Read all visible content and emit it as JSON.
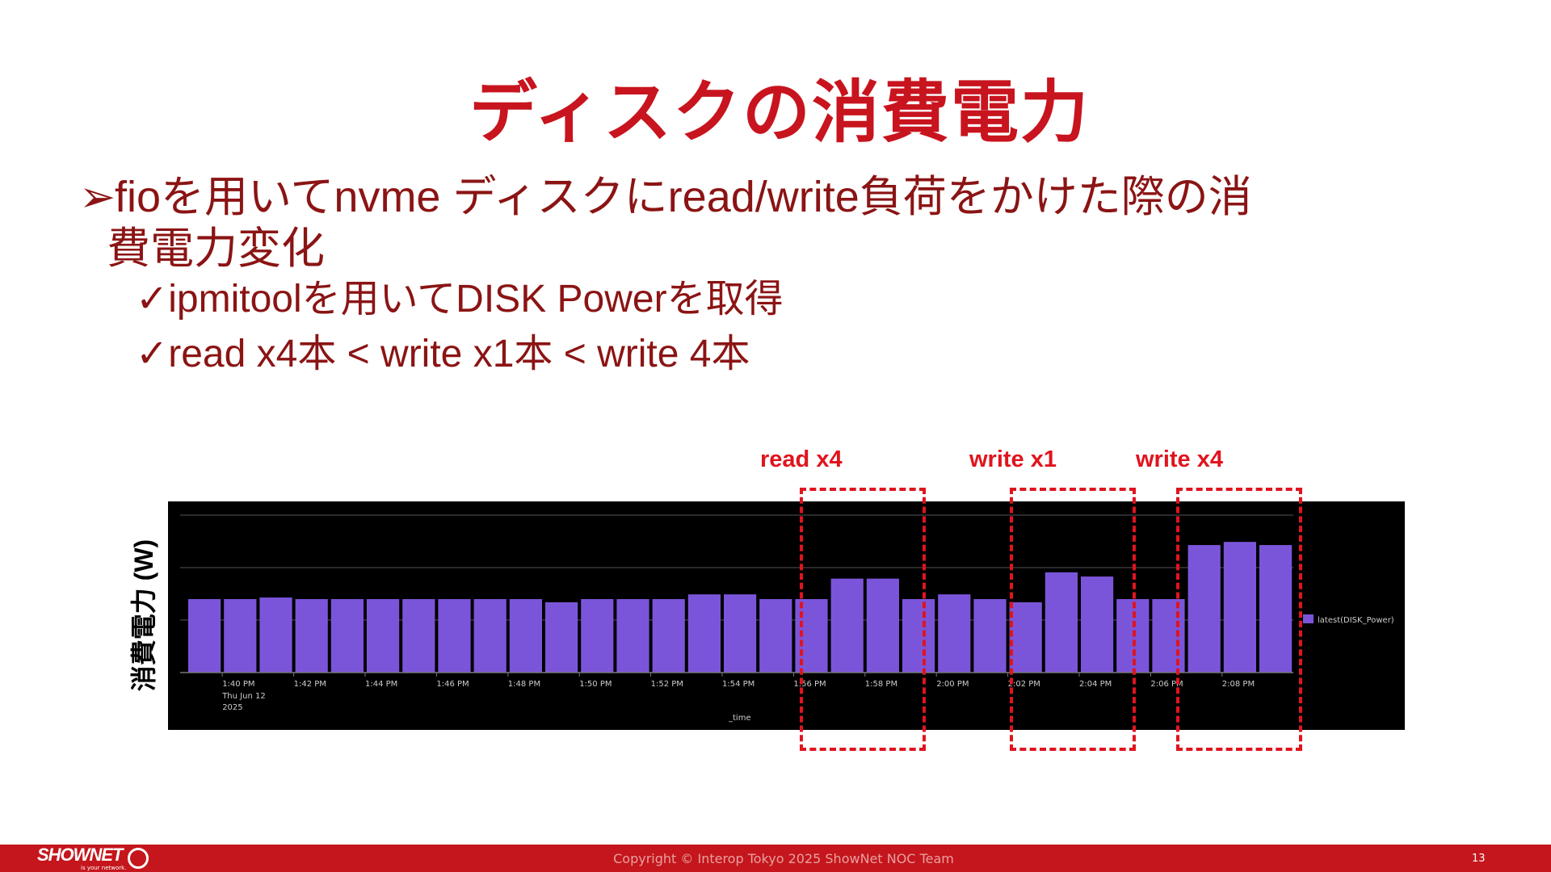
{
  "slide": {
    "title": "ディスクの消費電力",
    "bullet_mark": "➢",
    "bullet1_line1": "fioを用いてnvme ディスクにread/write負荷をかけた際の消",
    "bullet1_line2": "費電力変化",
    "check_mark": "✓",
    "sub_bullets": [
      "ipmitoolを用いてDISK Powerを取得",
      "read x4本 < write x1本 < write 4本"
    ],
    "annotations": [
      "read x4",
      "write x1",
      "write x4"
    ],
    "ylabel": "消費電力 (W)"
  },
  "chart_data": {
    "type": "bar",
    "xlabel": "_time",
    "ylabel": "消費電力 (W)",
    "x_tick_labels": [
      "1:40 PM",
      "1:42 PM",
      "1:44 PM",
      "1:46 PM",
      "1:48 PM",
      "1:50 PM",
      "1:52 PM",
      "1:54 PM",
      "1:56 PM",
      "1:58 PM",
      "2:00 PM",
      "2:02 PM",
      "2:04 PM",
      "2:06 PM",
      "2:08 PM"
    ],
    "date_label": [
      "Thu Jun 12",
      "2025"
    ],
    "series": [
      {
        "name": "latest(DISK_Power)",
        "values": [
          1.4,
          1.4,
          1.43,
          1.4,
          1.4,
          1.4,
          1.4,
          1.4,
          1.4,
          1.4,
          1.34,
          1.4,
          1.4,
          1.4,
          1.49,
          1.49,
          1.4,
          1.4,
          1.79,
          1.79,
          1.4,
          1.49,
          1.4,
          1.34,
          1.91,
          1.83,
          1.4,
          1.4,
          2.43,
          2.49,
          2.43
        ]
      }
    ],
    "ylim": [
      0,
      3.1
    ],
    "y_tick_labels_shown": false,
    "grid": true,
    "legend": "right",
    "colors": {
      "bar": "#7b55d9",
      "background": "#000000",
      "grid": "#555555"
    }
  },
  "footer": {
    "logo": "SHOWNET",
    "logo_tagline": "is your network.",
    "copyright": "Copyright © Interop Tokyo 2025 ShowNet NOC Team",
    "page_number": "13"
  }
}
